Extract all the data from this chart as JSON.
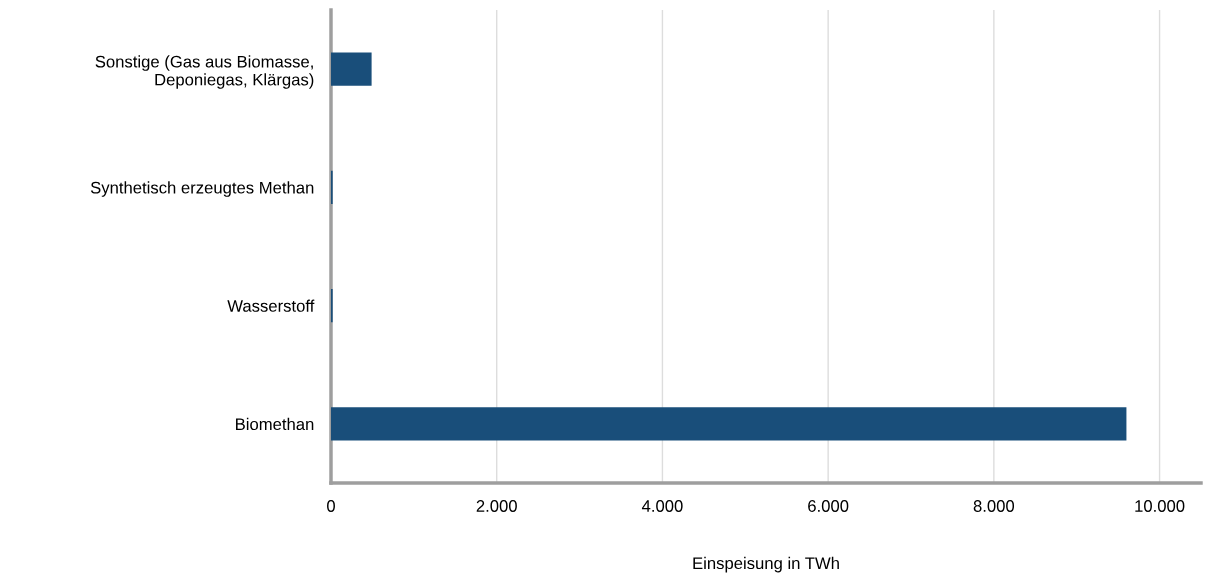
{
  "chart_data": {
    "type": "bar",
    "orientation": "horizontal",
    "xlabel": "Einspeisung in TWh",
    "categories": [
      "Sonstige (Gas aus Biomasse,\nDeponiegas, Klärgas)",
      "Synthetisch erzeugtes Methan",
      "Wasserstoff",
      "Biomethan"
    ],
    "values": [
      490,
      20,
      20,
      9600
    ],
    "color": "#194e7a",
    "xlim": [
      0,
      10500
    ],
    "xticks": [
      0,
      {
        "value": 2000,
        "label": "2.000"
      },
      {
        "value": 4000,
        "label": "4.000"
      },
      {
        "value": 6000,
        "label": "6.000"
      },
      {
        "value": 8000,
        "label": "8.000"
      },
      {
        "value": 10000,
        "label": "10.000"
      }
    ],
    "grid": "x"
  }
}
